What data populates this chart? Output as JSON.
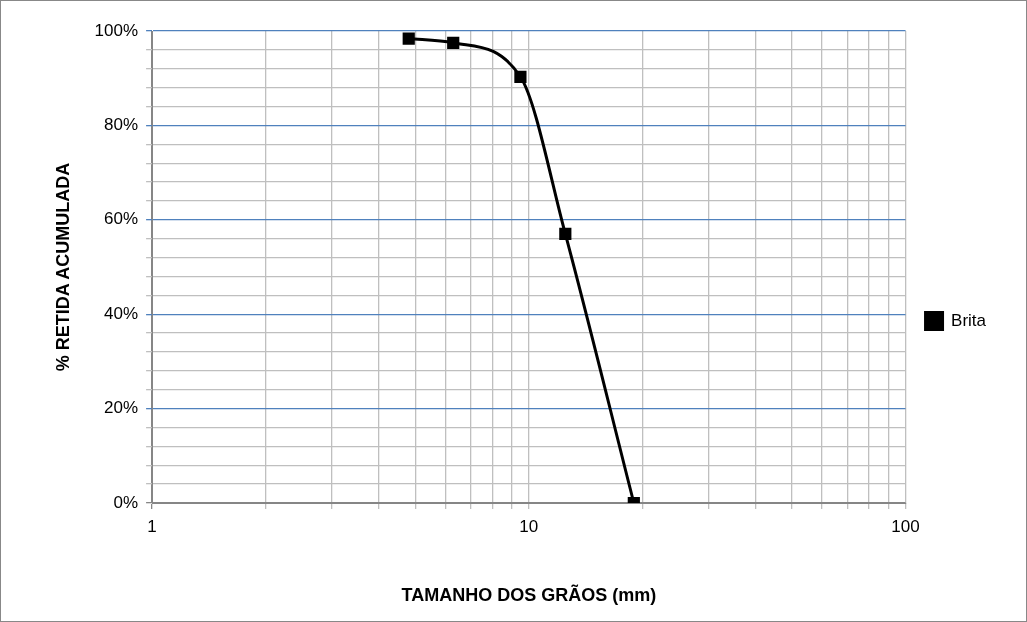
{
  "chart_data": {
    "type": "line",
    "xlabel": "TAMANHO DOS GRÃOS (mm)",
    "ylabel": "% RETIDA ACUMULADA",
    "x": [
      4.8,
      6.3,
      9.5,
      12.5,
      19
    ],
    "series": [
      {
        "name": "Brita",
        "color": "#000000",
        "values": [
          98.4,
          97.5,
          90.3,
          57,
          0
        ]
      }
    ],
    "xlim": [
      1,
      100
    ],
    "xticks": [
      1,
      {
        "value": 2,
        "label": null
      },
      {
        "value": 3,
        "label": null
      },
      {
        "value": 4,
        "label": null
      },
      {
        "value": 5,
        "label": null
      },
      {
        "value": 6,
        "label": null
      },
      {
        "value": 7,
        "label": null
      },
      {
        "value": 8,
        "label": null
      },
      {
        "value": 9,
        "label": null
      },
      10,
      {
        "value": 20,
        "label": null
      },
      {
        "value": 30,
        "label": null
      },
      {
        "value": 40,
        "label": null
      },
      {
        "value": 50,
        "label": null
      },
      {
        "value": 60,
        "label": null
      },
      {
        "value": 70,
        "label": null
      },
      {
        "value": 80,
        "label": null
      },
      {
        "value": 90,
        "label": null
      },
      100
    ],
    "ylim": [
      0,
      100
    ],
    "yticks": [
      {
        "value": 0,
        "label": "0%"
      },
      {
        "value": 4,
        "label": null
      },
      {
        "value": 8,
        "label": null
      },
      {
        "value": 12,
        "label": null
      },
      {
        "value": 16,
        "label": null
      },
      {
        "value": 20,
        "label": "20%"
      },
      {
        "value": 24,
        "label": null
      },
      {
        "value": 28,
        "label": null
      },
      {
        "value": 32,
        "label": null
      },
      {
        "value": 36,
        "label": null
      },
      {
        "value": 40,
        "label": "40%"
      },
      {
        "value": 44,
        "label": null
      },
      {
        "value": 48,
        "label": null
      },
      {
        "value": 52,
        "label": null
      },
      {
        "value": 56,
        "label": null
      },
      {
        "value": 60,
        "label": "60%"
      },
      {
        "value": 64,
        "label": null
      },
      {
        "value": 68,
        "label": null
      },
      {
        "value": 72,
        "label": null
      },
      {
        "value": 76,
        "label": null
      },
      {
        "value": 80,
        "label": "80%"
      },
      {
        "value": 84,
        "label": null
      },
      {
        "value": 88,
        "label": null
      },
      {
        "value": 92,
        "label": null
      },
      {
        "value": 96,
        "label": null
      },
      {
        "value": 100,
        "label": "100%"
      }
    ],
    "log": "x",
    "grid": true,
    "legend": "right",
    "marker": "square",
    "line_style": "solid"
  }
}
